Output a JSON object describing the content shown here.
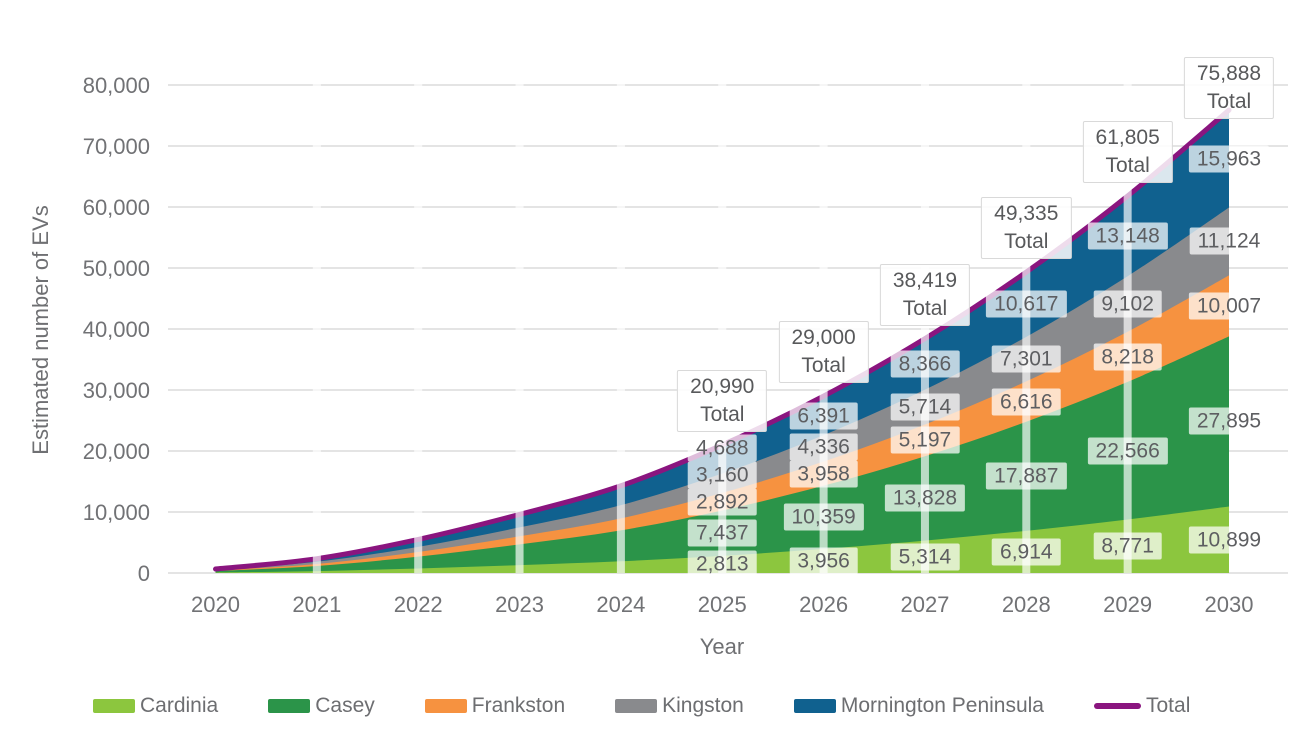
{
  "chart_data": {
    "type": "area",
    "stacked": true,
    "title": "",
    "xlabel": "Year",
    "ylabel": "Estimated number of EVs",
    "x": [
      2020,
      2021,
      2022,
      2023,
      2024,
      2025,
      2026,
      2027,
      2028,
      2029,
      2030
    ],
    "ylim": [
      0,
      80000
    ],
    "ytick_step": 10000,
    "grid": "horizontal",
    "legend_position": "bottom",
    "series": [
      {
        "name": "Cardinia",
        "color": "#8CC63E",
        "values": [
          90,
          315,
          740,
          1290,
          1920,
          2813,
          3956,
          5314,
          6914,
          8771,
          10899
        ]
      },
      {
        "name": "Casey",
        "color": "#2B9449",
        "values": [
          230,
          835,
          1950,
          3400,
          5070,
          7437,
          10359,
          13828,
          17887,
          22566,
          27895
        ]
      },
      {
        "name": "Frankston",
        "color": "#F69240",
        "values": [
          90,
          325,
          760,
          1330,
          1975,
          2892,
          3958,
          5197,
          6616,
          8218,
          10007
        ]
      },
      {
        "name": "Kingston",
        "color": "#898A8D",
        "values": [
          95,
          360,
          835,
          1450,
          2160,
          3160,
          4336,
          5714,
          7301,
          9102,
          11124
        ]
      },
      {
        "name": "Mornington Peninsula",
        "color": "#10618F",
        "values": [
          145,
          515,
          1215,
          2130,
          3175,
          4688,
          6391,
          8366,
          10617,
          13148,
          15963
        ]
      }
    ],
    "total_line": {
      "name": "Total",
      "color": "#8A157F"
    },
    "value_labels_start_year": 2025,
    "total_label_values": [
      20990,
      29000,
      38419,
      49335,
      61805,
      75888
    ],
    "estimated_years_no_labels": [
      2020,
      2021,
      2022,
      2023,
      2024
    ]
  },
  "colors": {
    "background": "#FFFFFF",
    "gridline": "#DCDCDC",
    "axis_text": "#717275",
    "value_label_text": "#5D5E61",
    "value_label_bg": "rgba(255,255,255,0.72)",
    "total_box_bg": "rgba(255,255,255,0.85)",
    "total_box_border": "#D9D9D9",
    "year_stripe": "rgba(255,255,255,0.68)"
  }
}
